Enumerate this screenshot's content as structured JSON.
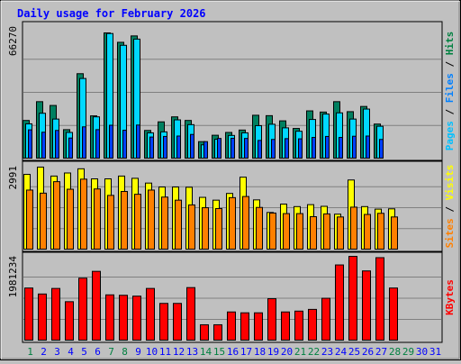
{
  "chart_data": {
    "type": "bar",
    "title": "Daily usage for February 2026",
    "days": [
      "1",
      "2",
      "3",
      "4",
      "5",
      "6",
      "7",
      "8",
      "9",
      "10",
      "11",
      "12",
      "13",
      "14",
      "15",
      "16",
      "17",
      "18",
      "19",
      "20",
      "21",
      "22",
      "23",
      "24",
      "25",
      "26",
      "27",
      "28",
      "29",
      "30",
      "31"
    ],
    "weekend_days": [
      "1",
      "7",
      "8",
      "14",
      "15",
      "21",
      "22",
      "28",
      "29"
    ],
    "day_colors": {
      "weekday": "#0000ff",
      "weekend": "#008040"
    },
    "panels": [
      {
        "id": "hits",
        "max_label": "66270",
        "ylim": [
          0,
          66270
        ],
        "axis_labels": [
          {
            "text": "Pages",
            "color": "#00c0ff"
          },
          {
            "text": " / ",
            "color": "#000000"
          },
          {
            "text": "Files",
            "color": "#0080ff"
          },
          {
            "text": " / ",
            "color": "#000000"
          },
          {
            "text": "Hits",
            "color": "#008040"
          }
        ],
        "series": [
          {
            "name": "Hits",
            "color": "#008060",
            "values": [
              19300,
              28700,
              26800,
              14700,
              42700,
              21600,
              63100,
              58400,
              61600,
              14300,
              18600,
              21100,
              19300,
              8700,
              11900,
              13300,
              14500,
              21900,
              21700,
              19100,
              15300,
              24100,
              23500,
              28700,
              23700,
              26300,
              17500,
              0,
              0,
              0,
              0
            ]
          },
          {
            "name": "Files",
            "color": "#00d8ff",
            "values": [
              17600,
              22900,
              20000,
              13300,
              40300,
              21100,
              62800,
              56900,
              60000,
              13100,
              13600,
              19600,
              17200,
              7100,
              9900,
              11800,
              13100,
              16700,
              17400,
              15600,
              13900,
              19800,
              22500,
              23100,
              20000,
              25000,
              16400,
              0,
              0,
              0,
              0
            ]
          },
          {
            "name": "Pages",
            "color": "#0040ff",
            "values": [
              14600,
              13400,
              14300,
              10500,
              16100,
              14700,
              16900,
              14400,
              17000,
              11000,
              11300,
              11500,
              12300,
              8700,
              10300,
              10400,
              10300,
              9300,
              9800,
              10200,
              10100,
              10800,
              11300,
              10800,
              11400,
              11500,
              9800,
              0,
              0,
              0,
              0
            ]
          }
        ]
      },
      {
        "id": "visits",
        "max_label": "2991",
        "ylim": [
          0,
          2991
        ],
        "axis_labels": [
          {
            "text": "Sites",
            "color": "#ff8000"
          },
          {
            "text": " / ",
            "color": "#000000"
          },
          {
            "text": "Visits",
            "color": "#ffff00"
          }
        ],
        "series": [
          {
            "name": "Visits",
            "color": "#ffff00",
            "values": [
              2700,
              2960,
              2640,
              2750,
              2900,
              2540,
              2540,
              2640,
              2560,
              2390,
              2250,
              2250,
              2240,
              1880,
              1780,
              2020,
              2600,
              1790,
              1340,
              1640,
              1550,
              1620,
              1560,
              1280,
              2500,
              1550,
              1460,
              1470,
              0,
              0,
              0
            ]
          },
          {
            "name": "Sites",
            "color": "#ff8000",
            "values": [
              2140,
              2030,
              2440,
              2170,
              2530,
              2180,
              1950,
              2090,
              1990,
              2140,
              1890,
              1780,
              1610,
              1510,
              1480,
              1870,
              1910,
              1520,
              1320,
              1300,
              1300,
              1190,
              1290,
              1180,
              1530,
              1270,
              1310,
              1180,
              0,
              0,
              0
            ]
          }
        ]
      },
      {
        "id": "kbytes",
        "max_label": "1981234",
        "ylim": [
          0,
          1981234
        ],
        "axis_labels": [
          {
            "text": "KBytes",
            "color": "#ff0000"
          }
        ],
        "series": [
          {
            "name": "KBytes",
            "color": "#ff0000",
            "values": [
              1240000,
              1100000,
              1230000,
              920000,
              1470000,
              1630000,
              1080000,
              1070000,
              1050000,
              1230000,
              880000,
              880000,
              1250000,
              380000,
              380000,
              680000,
              660000,
              660000,
              990000,
              680000,
              700000,
              740000,
              1000000,
              1780000,
              1980000,
              1640000,
              1950000,
              1240000,
              0,
              0,
              0
            ]
          }
        ]
      }
    ]
  }
}
